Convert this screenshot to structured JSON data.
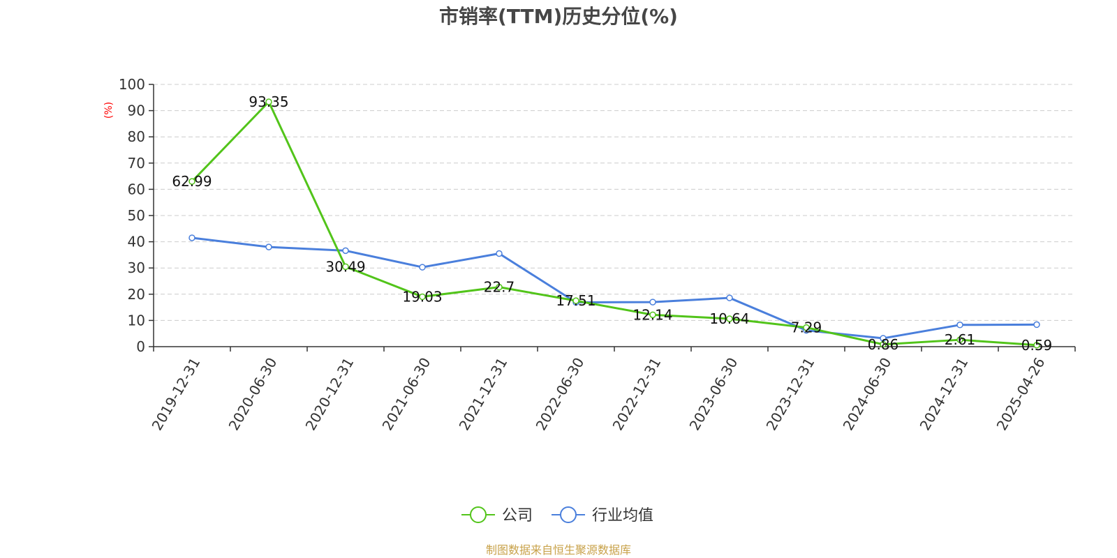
{
  "chart_data": {
    "type": "line",
    "title": "市销率(TTM)历史分位(%)",
    "ylabel": "(%)",
    "xlabel": "",
    "categories": [
      "2019-12-31",
      "2020-06-30",
      "2020-12-31",
      "2021-06-30",
      "2021-12-31",
      "2022-06-30",
      "2022-12-31",
      "2023-06-30",
      "2023-12-31",
      "2024-06-30",
      "2024-12-31",
      "2025-04-26"
    ],
    "ylim": [
      0,
      100
    ],
    "yticks": [
      0,
      10,
      20,
      30,
      40,
      50,
      60,
      70,
      80,
      90,
      100
    ],
    "grid": true,
    "legend_position": "bottom-center",
    "series": [
      {
        "name": "公司",
        "color": "#52c41a",
        "show_labels": true,
        "values": [
          62.99,
          93.35,
          30.49,
          19.03,
          22.7,
          17.51,
          12.14,
          10.64,
          7.29,
          0.86,
          2.61,
          0.59
        ]
      },
      {
        "name": "行业均值",
        "color": "#4a7fdc",
        "show_labels": false,
        "values": [
          41.5,
          38.0,
          36.6,
          30.3,
          35.5,
          16.9,
          17.0,
          18.6,
          6.2,
          3.2,
          8.3,
          8.4
        ]
      }
    ],
    "source": "制图数据来自恒生聚源数据库"
  }
}
